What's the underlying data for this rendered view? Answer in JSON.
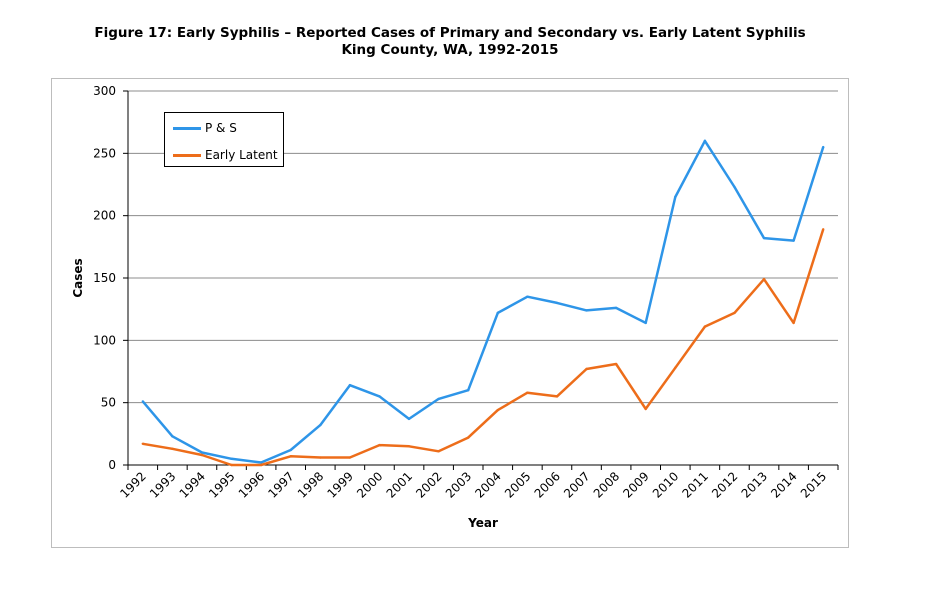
{
  "title_line1": "Figure 17: Early Syphilis – Reported Cases of Primary and Secondary vs. Early Latent Syphilis",
  "title_line2": "King County, WA, 1992-2015",
  "chart_data": {
    "type": "line",
    "title": "Figure 17: Early Syphilis – Reported Cases of Primary and Secondary vs. Early Latent Syphilis King County, WA, 1992-2015",
    "xlabel": "Year",
    "ylabel": "Cases",
    "ylim": [
      0,
      300
    ],
    "yticks": [
      0,
      50,
      100,
      150,
      200,
      250,
      300
    ],
    "grid": true,
    "legend_position": "top-left",
    "categories": [
      "1992",
      "1993",
      "1994",
      "1995",
      "1996",
      "1997",
      "1998",
      "1999",
      "2000",
      "2001",
      "2002",
      "2003",
      "2004",
      "2005",
      "2006",
      "2007",
      "2008",
      "2009",
      "2010",
      "2011",
      "2012",
      "2013",
      "2014",
      "2015"
    ],
    "series": [
      {
        "name": "P & S",
        "color": "#2e95e8",
        "values": [
          51,
          23,
          10,
          5,
          2,
          12,
          32,
          64,
          55,
          37,
          53,
          60,
          122,
          135,
          130,
          124,
          126,
          114,
          215,
          260,
          223,
          182,
          180,
          255
        ]
      },
      {
        "name": "Early Latent",
        "color": "#ed6d1a",
        "values": [
          17,
          13,
          8,
          0,
          0,
          7,
          6,
          6,
          16,
          15,
          11,
          22,
          44,
          58,
          55,
          77,
          81,
          45,
          78,
          111,
          122,
          149,
          114,
          189
        ]
      }
    ]
  }
}
